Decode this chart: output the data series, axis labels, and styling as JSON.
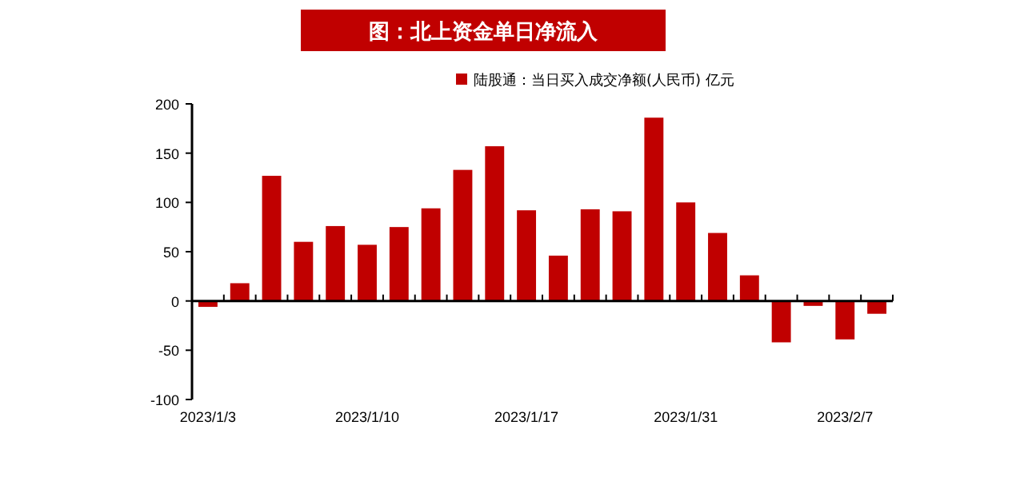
{
  "chart_data": {
    "type": "bar",
    "title": "图：北上资金单日净流入",
    "categories": [
      "2023/1/3",
      null,
      null,
      null,
      null,
      "2023/1/10",
      null,
      null,
      null,
      null,
      "2023/1/17",
      null,
      null,
      null,
      null,
      "2023/1/31",
      null,
      null,
      null,
      null,
      "2023/2/7",
      null
    ],
    "series": [
      {
        "name": "陆股通：当日买入成交净额(人民币) 亿元",
        "color": "#c00000",
        "values": [
          -6,
          18,
          127,
          60,
          76,
          57,
          75,
          94,
          133,
          157,
          92,
          46,
          93,
          91,
          186,
          100,
          69,
          26,
          -42,
          -5,
          -39,
          -13
        ]
      }
    ],
    "ylim": [
      -100,
      200
    ],
    "yticks": [
      -100,
      -50,
      0,
      50,
      100,
      150,
      200
    ],
    "legend": "top right"
  }
}
